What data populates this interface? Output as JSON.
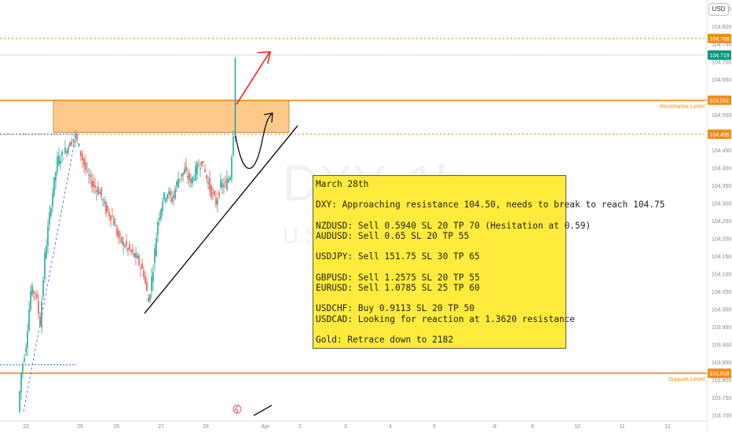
{
  "currency_label": "USD",
  "watermark": {
    "symbol": "DXY, 1h",
    "subtitle": "U.S."
  },
  "chart_data": {
    "type": "candlestick",
    "symbol": "DXY",
    "timeframe": "1h",
    "ylim": [
      103.685,
      104.875
    ],
    "y_ticks": [
      "104.850",
      "104.800",
      "104.750",
      "104.700",
      "104.650",
      "104.600",
      "104.550",
      "104.500",
      "104.450",
      "104.400",
      "104.350",
      "104.300",
      "104.250",
      "104.200",
      "104.150",
      "104.100",
      "104.050",
      "104.000",
      "103.950",
      "103.900",
      "103.850",
      "103.800",
      "103.750",
      "103.700"
    ],
    "x_ticks": [
      "22",
      "25",
      "26",
      "27",
      "28",
      "Apr",
      "2",
      "3",
      "4",
      "5",
      "8",
      "9",
      "10",
      "11",
      "12"
    ],
    "current_price": "104.719",
    "price_levels": [
      {
        "value": "104.766",
        "style": "dotted",
        "label": ""
      },
      {
        "value": "104.591",
        "style": "solid",
        "label": "Resistance Level"
      },
      {
        "value": "104.495",
        "style": "dotted",
        "label": ""
      },
      {
        "value": "103.818",
        "style": "solid",
        "label": "Support Level"
      }
    ],
    "colors": {
      "up": "#26a69a",
      "down": "#ef5350",
      "level": "#f28c18",
      "zone": "#ffc98a",
      "arrow": "#ff1a1a",
      "current": "#089981",
      "blue_dotted": "#2f5fd0"
    }
  },
  "note": {
    "lines": [
      "March 28th",
      "",
      "DXY: Approaching resistance 104.50, needs to break to reach 104.75",
      "",
      "NZDUSD: Sell 0.5940 SL 20 TP 70 (Hesitation at 0.59)",
      "AUDUSD: Sell 0.65 SL 20 TP 55",
      "",
      "USDJPY: Sell 151.75 SL 30 TP 65",
      "",
      "GBPUSD: Sell 1.2575 SL 20 TP 55",
      "EURUSD: Sell 1.0785 SL 25 TP 60",
      "",
      "USDCHF: Buy 0.9113 SL 20 TP 50",
      "USDCAD: Looking for reaction at 1.3620 resistance",
      "",
      "Gold: Retrace down to 2182"
    ]
  }
}
